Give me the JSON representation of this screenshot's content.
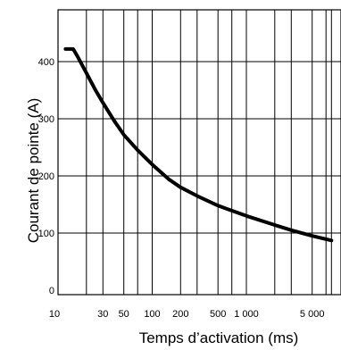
{
  "chart_data": {
    "type": "line",
    "title": "",
    "xlabel": "Temps d’activation (ms)",
    "ylabel": "Courant de pointe (A)",
    "x_scale": "log",
    "xlim": [
      10,
      8000
    ],
    "ylim": [
      0,
      480
    ],
    "x_ticks": [
      {
        "value": 10,
        "label": "10"
      },
      {
        "value": 30,
        "label": "30"
      },
      {
        "value": 50,
        "label": "50"
      },
      {
        "value": 100,
        "label": "100"
      },
      {
        "value": 200,
        "label": "200"
      },
      {
        "value": 500,
        "label": "500"
      },
      {
        "value": 1000,
        "label": "1 000"
      },
      {
        "value": 5000,
        "label": "5 000"
      }
    ],
    "x_gridlines": [
      10,
      20,
      30,
      50,
      70,
      100,
      200,
      300,
      500,
      700,
      1000,
      2000,
      3000,
      5000,
      7000,
      8000
    ],
    "y_ticks": [
      {
        "value": 0,
        "label": "0"
      },
      {
        "value": 100,
        "label": "100"
      },
      {
        "value": 200,
        "label": "200"
      },
      {
        "value": 300,
        "label": "300"
      },
      {
        "value": 400,
        "label": "400"
      }
    ],
    "grid": true,
    "series": [
      {
        "x": [
          12,
          14.5,
          16,
          20,
          25,
          30,
          40,
          50,
          70,
          100,
          150,
          200,
          300,
          500,
          1000,
          2000,
          3000,
          5000,
          8000
        ],
        "y": [
          422,
          422,
          410,
          380,
          350,
          328,
          295,
          272,
          245,
          220,
          194,
          180,
          165,
          148,
          130,
          114,
          105,
          95,
          87
        ]
      }
    ]
  }
}
